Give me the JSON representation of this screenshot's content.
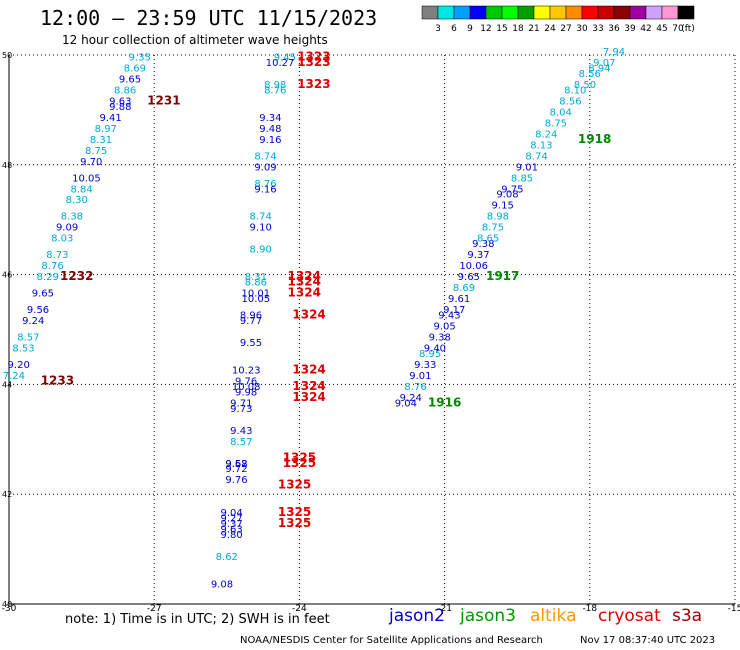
{
  "header": {
    "title": "12:00 – 23:59 UTC 11/15/2023",
    "subtitle": "12 hour collection of altimeter wave heights"
  },
  "colorbar": {
    "labels": [
      "3",
      "6",
      "9",
      "12",
      "15",
      "18",
      "21",
      "24",
      "27",
      "30",
      "33",
      "36",
      "39",
      "42",
      "45",
      "70"
    ],
    "unit": "(ft)",
    "colors": [
      "#808080",
      "#00e5e5",
      "#00a0ff",
      "#0000ff",
      "#00c800",
      "#00ff00",
      "#00a000",
      "#ffff00",
      "#ffc800",
      "#ff8c00",
      "#ff0000",
      "#c80000",
      "#8b0000",
      "#a000a0",
      "#d2a0ff",
      "#ff96d2",
      "#000000"
    ]
  },
  "footer": {
    "note": "note:  1) Time is in UTC;  2) SWH is in feet",
    "credit": "NOAA/NESDIS Center for Satellite Applications and Research",
    "timestamp": "Nov 17 08:37:40 UTC 2023",
    "satellites": [
      {
        "name": "jason2",
        "color": "#0000cc"
      },
      {
        "name": "jason3",
        "color": "#009900"
      },
      {
        "name": "altika",
        "color": "#ff9900"
      },
      {
        "name": "cryosat",
        "color": "#dd0000"
      },
      {
        "name": "s3a",
        "color": "#990000"
      }
    ]
  },
  "chart_data": {
    "type": "scatter",
    "title": "12:00 – 23:59 UTC 11/15/2023",
    "subtitle": "12 hour collection of altimeter wave heights",
    "xlabel": "",
    "ylabel": "",
    "xlim": [
      -30,
      -15
    ],
    "ylim": [
      40,
      50
    ],
    "xticks": [
      "-30",
      "-27",
      "-24",
      "-21",
      "-18",
      "-15"
    ],
    "yticks": [
      "40",
      "42",
      "44",
      "46",
      "48",
      "50"
    ],
    "grid": true,
    "colors": {
      "cyan": "#00a8d8",
      "blue": "#0000cc",
      "red": "#dd0000",
      "darkred": "#800000",
      "green": "#008800"
    },
    "points": [
      {
        "x": -27.3,
        "y": 49.9,
        "label": "9.35",
        "color": "cyan"
      },
      {
        "x": -27.4,
        "y": 49.7,
        "label": "8.69",
        "color": "cyan"
      },
      {
        "x": -27.5,
        "y": 49.5,
        "label": "9.65",
        "color": "blue"
      },
      {
        "x": -27.6,
        "y": 49.3,
        "label": "8.86",
        "color": "cyan"
      },
      {
        "x": -27.7,
        "y": 49.1,
        "label": "9.63",
        "color": "blue"
      },
      {
        "x": -27.7,
        "y": 49.0,
        "label": "9.88",
        "color": "blue"
      },
      {
        "x": -27.9,
        "y": 48.8,
        "label": "9.41",
        "color": "blue"
      },
      {
        "x": -28.0,
        "y": 48.6,
        "label": "8.97",
        "color": "cyan"
      },
      {
        "x": -28.1,
        "y": 48.4,
        "label": "8.31",
        "color": "cyan"
      },
      {
        "x": -28.2,
        "y": 48.2,
        "label": "8.75",
        "color": "cyan"
      },
      {
        "x": -28.3,
        "y": 48.0,
        "label": "9.70",
        "color": "blue"
      },
      {
        "x": -28.4,
        "y": 47.7,
        "label": "10.05",
        "color": "blue"
      },
      {
        "x": -28.5,
        "y": 47.5,
        "label": "8.84",
        "color": "cyan"
      },
      {
        "x": -28.6,
        "y": 47.3,
        "label": "8.30",
        "color": "cyan"
      },
      {
        "x": -28.7,
        "y": 47.0,
        "label": "8.38",
        "color": "cyan"
      },
      {
        "x": -28.8,
        "y": 46.8,
        "label": "9.09",
        "color": "blue"
      },
      {
        "x": -28.9,
        "y": 46.6,
        "label": "8.03",
        "color": "cyan"
      },
      {
        "x": -29.0,
        "y": 46.3,
        "label": "8.73",
        "color": "cyan"
      },
      {
        "x": -29.1,
        "y": 46.1,
        "label": "8.76",
        "color": "cyan"
      },
      {
        "x": -29.2,
        "y": 45.9,
        "label": "8.29",
        "color": "cyan"
      },
      {
        "x": -29.3,
        "y": 45.6,
        "label": "9.65",
        "color": "blue"
      },
      {
        "x": -29.4,
        "y": 45.3,
        "label": "9.56",
        "color": "blue"
      },
      {
        "x": -29.5,
        "y": 45.1,
        "label": "9.24",
        "color": "blue"
      },
      {
        "x": -29.6,
        "y": 44.8,
        "label": "8.57",
        "color": "cyan"
      },
      {
        "x": -29.7,
        "y": 44.6,
        "label": "8.53",
        "color": "cyan"
      },
      {
        "x": -29.8,
        "y": 44.3,
        "label": "9.20",
        "color": "blue"
      },
      {
        "x": -29.9,
        "y": 44.1,
        "label": "7.24",
        "color": "cyan"
      },
      {
        "x": -24.3,
        "y": 49.9,
        "label": "9.45",
        "color": "cyan"
      },
      {
        "x": -24.4,
        "y": 49.8,
        "label": "10.27",
        "color": "blue"
      },
      {
        "x": -24.5,
        "y": 49.4,
        "label": "8.98",
        "color": "cyan"
      },
      {
        "x": -24.5,
        "y": 49.3,
        "label": "8.76",
        "color": "cyan"
      },
      {
        "x": -24.6,
        "y": 48.8,
        "label": "9.34",
        "color": "blue"
      },
      {
        "x": -24.6,
        "y": 48.6,
        "label": "9.48",
        "color": "blue"
      },
      {
        "x": -24.6,
        "y": 48.4,
        "label": "9.16",
        "color": "blue"
      },
      {
        "x": -24.7,
        "y": 48.1,
        "label": "8.74",
        "color": "cyan"
      },
      {
        "x": -24.7,
        "y": 47.9,
        "label": "9.09",
        "color": "blue"
      },
      {
        "x": -24.7,
        "y": 47.6,
        "label": "8.76",
        "color": "cyan"
      },
      {
        "x": -24.7,
        "y": 47.5,
        "label": "9.16",
        "color": "blue"
      },
      {
        "x": -24.8,
        "y": 47.0,
        "label": "8.74",
        "color": "cyan"
      },
      {
        "x": -24.8,
        "y": 46.8,
        "label": "9.10",
        "color": "blue"
      },
      {
        "x": -24.8,
        "y": 46.4,
        "label": "8.90",
        "color": "cyan"
      },
      {
        "x": -24.9,
        "y": 45.9,
        "label": "8.31",
        "color": "cyan"
      },
      {
        "x": -24.9,
        "y": 45.8,
        "label": "8.86",
        "color": "cyan"
      },
      {
        "x": -24.9,
        "y": 45.6,
        "label": "10.01",
        "color": "blue"
      },
      {
        "x": -24.9,
        "y": 45.5,
        "label": "10.05",
        "color": "blue"
      },
      {
        "x": -25.0,
        "y": 45.2,
        "label": "8.96",
        "color": "blue"
      },
      {
        "x": -25.0,
        "y": 45.1,
        "label": "9.77",
        "color": "blue"
      },
      {
        "x": -25.0,
        "y": 44.7,
        "label": "9.55",
        "color": "blue"
      },
      {
        "x": -25.1,
        "y": 44.2,
        "label": "10.23",
        "color": "blue"
      },
      {
        "x": -25.1,
        "y": 44.0,
        "label": "9.76",
        "color": "blue"
      },
      {
        "x": -25.1,
        "y": 43.9,
        "label": "10.08",
        "color": "blue"
      },
      {
        "x": -25.1,
        "y": 43.8,
        "label": "9.98",
        "color": "blue"
      },
      {
        "x": -25.2,
        "y": 43.6,
        "label": "9.71",
        "color": "blue"
      },
      {
        "x": -25.2,
        "y": 43.5,
        "label": "9.73",
        "color": "blue"
      },
      {
        "x": -25.2,
        "y": 43.1,
        "label": "9.43",
        "color": "blue"
      },
      {
        "x": -25.2,
        "y": 42.9,
        "label": "8.57",
        "color": "cyan"
      },
      {
        "x": -25.3,
        "y": 42.5,
        "label": "9.58",
        "color": "blue"
      },
      {
        "x": -25.3,
        "y": 42.5,
        "label": "9.62",
        "color": "blue"
      },
      {
        "x": -25.3,
        "y": 42.4,
        "label": "9.72",
        "color": "blue"
      },
      {
        "x": -25.3,
        "y": 42.2,
        "label": "9.76",
        "color": "blue"
      },
      {
        "x": -25.4,
        "y": 41.6,
        "label": "9.04",
        "color": "blue"
      },
      {
        "x": -25.4,
        "y": 41.5,
        "label": "9.27",
        "color": "blue"
      },
      {
        "x": -25.4,
        "y": 41.4,
        "label": "9.37",
        "color": "blue"
      },
      {
        "x": -25.4,
        "y": 41.3,
        "label": "9.63",
        "color": "blue"
      },
      {
        "x": -25.4,
        "y": 41.2,
        "label": "9.80",
        "color": "blue"
      },
      {
        "x": -25.5,
        "y": 40.8,
        "label": "8.62",
        "color": "cyan"
      },
      {
        "x": -25.6,
        "y": 40.3,
        "label": "9.08",
        "color": "blue"
      },
      {
        "x": -21.8,
        "y": 43.6,
        "label": "9.04",
        "color": "blue"
      },
      {
        "x": -21.7,
        "y": 43.7,
        "label": "9.24",
        "color": "blue"
      },
      {
        "x": -21.6,
        "y": 43.9,
        "label": "8.76",
        "color": "cyan"
      },
      {
        "x": -21.5,
        "y": 44.1,
        "label": "9.01",
        "color": "blue"
      },
      {
        "x": -21.4,
        "y": 44.3,
        "label": "9.33",
        "color": "blue"
      },
      {
        "x": -21.3,
        "y": 44.5,
        "label": "8.95",
        "color": "cyan"
      },
      {
        "x": -21.2,
        "y": 44.6,
        "label": "9.40",
        "color": "blue"
      },
      {
        "x": -21.1,
        "y": 44.8,
        "label": "9.38",
        "color": "blue"
      },
      {
        "x": -21.0,
        "y": 45.0,
        "label": "9.05",
        "color": "blue"
      },
      {
        "x": -20.9,
        "y": 45.2,
        "label": "9.43",
        "color": "blue"
      },
      {
        "x": -20.8,
        "y": 45.3,
        "label": "9.17",
        "color": "blue"
      },
      {
        "x": -20.7,
        "y": 45.5,
        "label": "9.61",
        "color": "blue"
      },
      {
        "x": -20.6,
        "y": 45.7,
        "label": "8.69",
        "color": "cyan"
      },
      {
        "x": -20.5,
        "y": 45.9,
        "label": "9.65",
        "color": "blue"
      },
      {
        "x": -20.4,
        "y": 46.1,
        "label": "10.06",
        "color": "blue"
      },
      {
        "x": -20.3,
        "y": 46.3,
        "label": "9.37",
        "color": "blue"
      },
      {
        "x": -20.2,
        "y": 46.5,
        "label": "9.38",
        "color": "blue"
      },
      {
        "x": -20.1,
        "y": 46.6,
        "label": "8.65",
        "color": "cyan"
      },
      {
        "x": -20.0,
        "y": 46.8,
        "label": "8.75",
        "color": "cyan"
      },
      {
        "x": -19.9,
        "y": 47.0,
        "label": "8.98",
        "color": "cyan"
      },
      {
        "x": -19.8,
        "y": 47.2,
        "label": "9.15",
        "color": "blue"
      },
      {
        "x": -19.7,
        "y": 47.4,
        "label": "9.08",
        "color": "blue"
      },
      {
        "x": -19.6,
        "y": 47.5,
        "label": "9.75",
        "color": "blue"
      },
      {
        "x": -19.4,
        "y": 47.7,
        "label": "8.85",
        "color": "cyan"
      },
      {
        "x": -19.3,
        "y": 47.9,
        "label": "9.01",
        "color": "blue"
      },
      {
        "x": -19.1,
        "y": 48.1,
        "label": "8.74",
        "color": "cyan"
      },
      {
        "x": -19.0,
        "y": 48.3,
        "label": "8.13",
        "color": "cyan"
      },
      {
        "x": -18.9,
        "y": 48.5,
        "label": "8.24",
        "color": "cyan"
      },
      {
        "x": -18.7,
        "y": 48.7,
        "label": "8.75",
        "color": "cyan"
      },
      {
        "x": -18.6,
        "y": 48.9,
        "label": "8.04",
        "color": "cyan"
      },
      {
        "x": -18.4,
        "y": 49.1,
        "label": "8.56",
        "color": "cyan"
      },
      {
        "x": -18.3,
        "y": 49.3,
        "label": "8.10",
        "color": "cyan"
      },
      {
        "x": -18.1,
        "y": 49.4,
        "label": "8.50",
        "color": "cyan"
      },
      {
        "x": -18.0,
        "y": 49.6,
        "label": "8.56",
        "color": "cyan"
      },
      {
        "x": -17.8,
        "y": 49.7,
        "label": "8.94",
        "color": "cyan"
      },
      {
        "x": -17.7,
        "y": 49.8,
        "label": "9.07",
        "color": "cyan"
      },
      {
        "x": -17.5,
        "y": 50.0,
        "label": "7.94",
        "color": "cyan"
      }
    ],
    "time_labels": [
      {
        "x": -26.8,
        "y": 49.1,
        "text": "1231",
        "color": "darkred"
      },
      {
        "x": -28.6,
        "y": 45.9,
        "text": "1232",
        "color": "darkred"
      },
      {
        "x": -29.0,
        "y": 44.0,
        "text": "1233",
        "color": "darkred"
      },
      {
        "x": -23.7,
        "y": 49.9,
        "text": "1323",
        "color": "red"
      },
      {
        "x": -23.7,
        "y": 49.8,
        "text": "1323",
        "color": "red"
      },
      {
        "x": -23.7,
        "y": 49.4,
        "text": "1323",
        "color": "red"
      },
      {
        "x": -23.9,
        "y": 45.9,
        "text": "1324",
        "color": "red"
      },
      {
        "x": -23.9,
        "y": 45.8,
        "text": "1324",
        "color": "red"
      },
      {
        "x": -23.9,
        "y": 45.6,
        "text": "1324",
        "color": "red"
      },
      {
        "x": -23.8,
        "y": 45.2,
        "text": "1324",
        "color": "red"
      },
      {
        "x": -23.8,
        "y": 44.2,
        "text": "1324",
        "color": "red"
      },
      {
        "x": -23.8,
        "y": 43.9,
        "text": "1324",
        "color": "red"
      },
      {
        "x": -23.8,
        "y": 43.7,
        "text": "1324",
        "color": "red"
      },
      {
        "x": -24.0,
        "y": 42.6,
        "text": "1325",
        "color": "red"
      },
      {
        "x": -24.0,
        "y": 42.5,
        "text": "1325",
        "color": "red"
      },
      {
        "x": -24.1,
        "y": 42.1,
        "text": "1325",
        "color": "red"
      },
      {
        "x": -24.1,
        "y": 41.6,
        "text": "1325",
        "color": "red"
      },
      {
        "x": -24.1,
        "y": 41.4,
        "text": "1325",
        "color": "red"
      },
      {
        "x": -21.0,
        "y": 43.6,
        "text": "1916",
        "color": "green"
      },
      {
        "x": -19.8,
        "y": 45.9,
        "text": "1917",
        "color": "green"
      },
      {
        "x": -17.9,
        "y": 48.4,
        "text": "1918",
        "color": "green"
      }
    ]
  }
}
